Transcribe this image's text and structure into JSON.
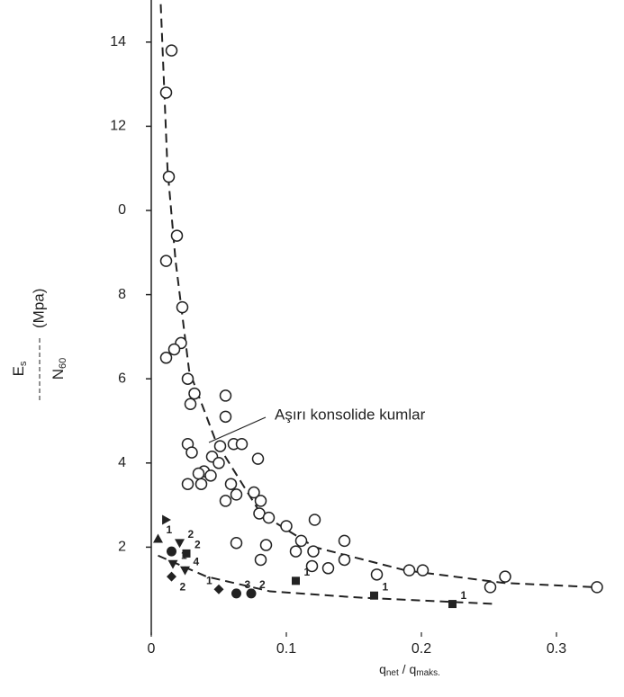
{
  "chart_data": {
    "type": "scatter",
    "y_label": {
      "numerator": "E",
      "numerator_sub": "s",
      "unit": "(Mpa)",
      "denominator": "N",
      "denominator_sub": "60"
    },
    "x_label": {
      "q1": "q",
      "q1_sub": "net",
      "q2": " / q",
      "q2_sub": "maks."
    },
    "annotation": "Aşırı konsolide kumlar",
    "xlim": [
      0,
      0.35
    ],
    "ylim": [
      0,
      15
    ],
    "xticks": [
      0,
      0.1,
      0.2,
      0.3
    ],
    "yticks": [
      2,
      4,
      6,
      8,
      {
        "value": 10,
        "label": "0"
      },
      12,
      14
    ],
    "series": [
      {
        "marker": "circle-open",
        "color": "#222222",
        "x": [
          0.015,
          0.011,
          0.013,
          0.019,
          0.011,
          0.023,
          0.022,
          0.017,
          0.011,
          0.027,
          0.029,
          0.032,
          0.055,
          0.055,
          0.027,
          0.03,
          0.051,
          0.045,
          0.061,
          0.067,
          0.079,
          0.05,
          0.039,
          0.035,
          0.044,
          0.027,
          0.037,
          0.059,
          0.063,
          0.076,
          0.055,
          0.081,
          0.08,
          0.087,
          0.1,
          0.121,
          0.111,
          0.143,
          0.063,
          0.085,
          0.107,
          0.12,
          0.081,
          0.143,
          0.119,
          0.131,
          0.167,
          0.191,
          0.201,
          0.251,
          0.262,
          0.33
        ],
        "values": [
          13.8,
          12.8,
          10.8,
          9.4,
          8.8,
          7.7,
          6.85,
          6.7,
          6.5,
          6.0,
          5.4,
          5.65,
          5.6,
          5.1,
          4.45,
          4.25,
          4.4,
          4.15,
          4.45,
          4.45,
          4.1,
          4.0,
          3.8,
          3.75,
          3.7,
          3.5,
          3.5,
          3.5,
          3.25,
          3.3,
          3.1,
          3.1,
          2.8,
          2.7,
          2.5,
          2.65,
          2.15,
          2.15,
          2.1,
          2.05,
          1.9,
          1.9,
          1.7,
          1.7,
          1.55,
          1.5,
          1.35,
          1.45,
          1.45,
          1.05,
          1.3,
          1.05
        ]
      }
    ],
    "markers": [
      {
        "shape": "triangle-up",
        "x": 0.005,
        "y": 2.2,
        "label": "1"
      },
      {
        "shape": "triangle-right",
        "x": 0.011,
        "y": 2.65
      },
      {
        "shape": "circle",
        "x": 0.015,
        "y": 1.9
      },
      {
        "shape": "triangle-down",
        "x": 0.021,
        "y": 2.1,
        "label": "2"
      },
      {
        "shape": "triangle-down",
        "x": 0.016,
        "y": 1.6,
        "label": "1"
      },
      {
        "shape": "triangle-down",
        "x": 0.025,
        "y": 1.45,
        "label": "4"
      },
      {
        "shape": "square",
        "x": 0.026,
        "y": 1.85,
        "label": "2"
      },
      {
        "shape": "diamond",
        "x": 0.015,
        "y": 1.3,
        "label": "2"
      },
      {
        "shape": "diamond",
        "x": 0.05,
        "y": 1.0,
        "label": "1"
      },
      {
        "shape": "circle",
        "x": 0.063,
        "y": 0.9,
        "label": "3"
      },
      {
        "shape": "circle",
        "x": 0.074,
        "y": 0.9,
        "label": "2"
      },
      {
        "shape": "square",
        "x": 0.107,
        "y": 1.2,
        "label": "1"
      },
      {
        "shape": "square",
        "x": 0.165,
        "y": 0.85,
        "label": "1"
      },
      {
        "shape": "square",
        "x": 0.223,
        "y": 0.65,
        "label": "1"
      }
    ],
    "curves": [
      {
        "x": [
          0.007,
          0.012,
          0.018,
          0.028,
          0.048,
          0.081,
          0.121,
          0.188,
          0.261,
          0.328
        ],
        "values": [
          14.9,
          11.0,
          8.8,
          6.2,
          4.5,
          2.8,
          2.0,
          1.45,
          1.15,
          1.05
        ]
      },
      {
        "x": [
          0.005,
          0.041,
          0.088,
          0.155,
          0.255
        ],
        "values": [
          1.8,
          1.3,
          0.95,
          0.8,
          0.65
        ]
      }
    ],
    "color": "#222222"
  }
}
